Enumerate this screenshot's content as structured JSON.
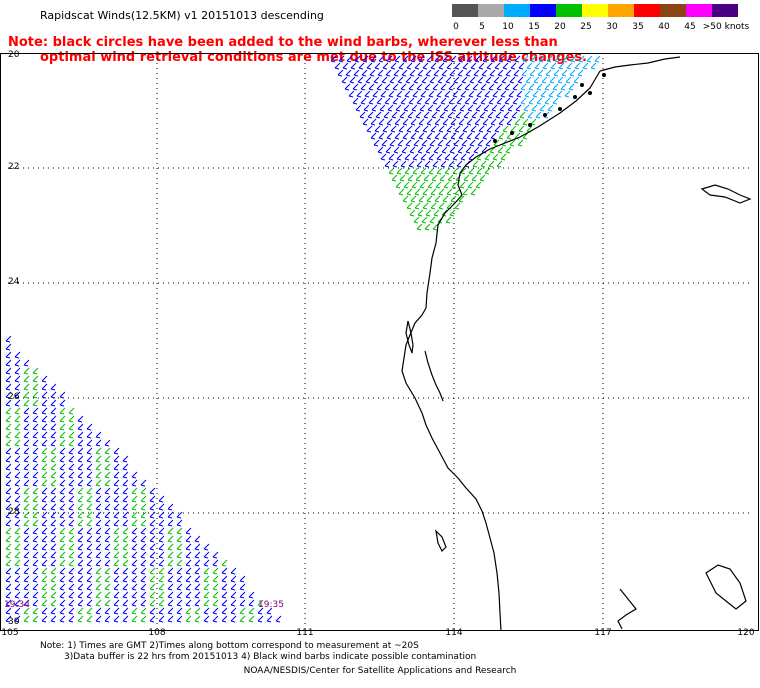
{
  "title": "Rapidscat Winds(12.5KM) v1 20151013 descending",
  "note": {
    "line1": "Note: black circles have been added to the wind barbs, wherever less than",
    "line2": "optimal wind retrieval conditions are met due to the ISS attitude changes."
  },
  "legend": {
    "labels": [
      "0",
      "5",
      "10",
      "15",
      "20",
      "25",
      "30",
      "35",
      "40",
      "45",
      ">50 knots"
    ],
    "colors": [
      "#555555",
      "#aaaaaa",
      "#00aaff",
      "#0000ff",
      "#00c000",
      "#ffff00",
      "#ffa500",
      "#ff0000",
      "#8b4513",
      "#ff00ff",
      "#4b0082"
    ]
  },
  "axes": {
    "lat_labels": [
      "20",
      "22",
      "24",
      "26",
      "28",
      "30"
    ],
    "lon_labels": [
      "105",
      "108",
      "111",
      "114",
      "117",
      "120"
    ]
  },
  "times": [
    "19:34",
    "19:35"
  ],
  "bottom_notes": {
    "line1": "Note: 1) Times are GMT 2)Times along bottom correspond to measurement at ~20S",
    "line2": "3)Data buffer is 22 hrs from 20151013 4) Black wind barbs indicate possible contamination"
  },
  "credit": "NOAA/NESDIS/Center for Satellite Applications and Research",
  "colors": {
    "barb_blue": "#0000ff",
    "barb_green": "#00c000",
    "barb_cyan": "#00aaff",
    "barb_black": "#000000",
    "note_red": "#ff0000",
    "time_purple": "#800080"
  }
}
